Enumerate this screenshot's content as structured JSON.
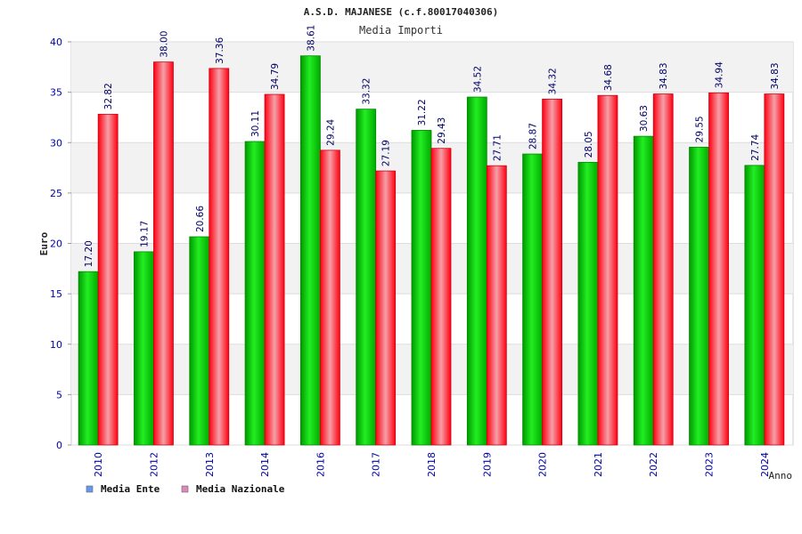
{
  "chart_data": {
    "type": "bar",
    "title": "A.S.D. MAJANESE (c.f.80017040306)",
    "subtitle": "Media Importi",
    "xlabel": "Anno",
    "ylabel": "Euro",
    "ylim": [
      0,
      40
    ],
    "yticks": [
      "0",
      "5",
      "10",
      "15",
      "20",
      "25",
      "30",
      "35",
      "40"
    ],
    "grid": true,
    "legend_position": "bottom-left",
    "categories": [
      "2010",
      "2012",
      "2013",
      "2014",
      "2016",
      "2017",
      "2018",
      "2019",
      "2020",
      "2021",
      "2022",
      "2023",
      "2024"
    ],
    "series": [
      {
        "name": "Media Ente",
        "color": "#00cc00",
        "legend_color": "#6699ee",
        "values": [
          17.2,
          19.17,
          20.66,
          30.11,
          38.61,
          33.32,
          31.22,
          34.52,
          28.87,
          28.05,
          30.63,
          29.55,
          27.74
        ],
        "labels": [
          "17.20",
          "19.17",
          "20.66",
          "30.11",
          "38.61",
          "33.32",
          "31.22",
          "34.52",
          "28.87",
          "28.05",
          "30.63",
          "29.55",
          "27.74"
        ]
      },
      {
        "name": "Media Nazionale",
        "color": "#ee1122",
        "legend_color": "#dd88bb",
        "values": [
          32.82,
          38.0,
          37.36,
          34.79,
          29.24,
          27.19,
          29.43,
          27.71,
          34.32,
          34.68,
          34.83,
          34.94,
          34.83
        ],
        "labels": [
          "32.82",
          "38.00",
          "37.36",
          "34.79",
          "29.24",
          "27.19",
          "29.43",
          "27.71",
          "34.32",
          "34.68",
          "34.83",
          "34.94",
          "34.83"
        ]
      }
    ]
  }
}
